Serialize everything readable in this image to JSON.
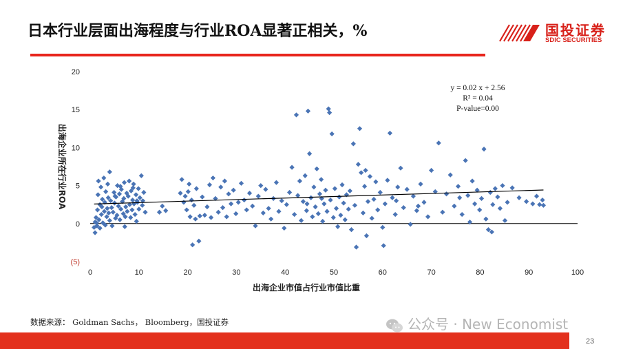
{
  "slide": {
    "title": "日本行业层面出海程度与行业ROA显著正相关，%",
    "source": "数据来源： Goldman Sachs， Bloomberg，国投证券",
    "page_number": "23",
    "accent_color": "#e8251c"
  },
  "logo": {
    "name_cn": "国投证券",
    "name_en": "SDIC SECURITIES",
    "color": "#d8211a"
  },
  "watermark": {
    "text": "公众号 · New Economist",
    "icon": "wechat-icon"
  },
  "chart_data": {
    "type": "scatter",
    "title": "",
    "xlabel": "出海企业市值占行业市值比重",
    "ylabel": "出海企业所在行业ROA",
    "xlim": [
      0,
      100
    ],
    "ylim": [
      -5,
      20
    ],
    "x_ticks": [
      "0",
      "10",
      "20",
      "30",
      "40",
      "50",
      "60",
      "70",
      "80",
      "90",
      "100"
    ],
    "y_ticks": [
      "20",
      "15",
      "10",
      "5",
      "0",
      "(5)"
    ],
    "grid": false,
    "marker": "diamond",
    "point_color": "#4a74b5",
    "negative_tick_color": "#c0392b",
    "annotation": [
      "y = 0.02 x + 2.56",
      "R² = 0.04",
      "P-value=0.00"
    ],
    "trendline": {
      "slope": 0.02,
      "intercept": 2.56,
      "x_range": [
        0.8,
        93
      ]
    },
    "points": [
      [
        0.8,
        -0.5
      ],
      [
        1,
        0.2
      ],
      [
        1,
        -1.2
      ],
      [
        1.2,
        0.8
      ],
      [
        1.4,
        -0.3
      ],
      [
        1.5,
        1.8
      ],
      [
        1.6,
        3.8
      ],
      [
        1.7,
        5.6
      ],
      [
        1.8,
        0.5
      ],
      [
        2,
        2.5
      ],
      [
        2,
        -0.6
      ],
      [
        2.2,
        4.8
      ],
      [
        2.3,
        1.2
      ],
      [
        2.5,
        3.2
      ],
      [
        2.6,
        0.1
      ],
      [
        2.8,
        6.0
      ],
      [
        2.9,
        1.6
      ],
      [
        3,
        2.8
      ],
      [
        3.1,
        -0.2
      ],
      [
        3.2,
        4.2
      ],
      [
        3.4,
        0.9
      ],
      [
        3.5,
        2.0
      ],
      [
        3.6,
        5.2
      ],
      [
        3.8,
        1.4
      ],
      [
        4,
        6.8
      ],
      [
        4,
        0.4
      ],
      [
        4.2,
        3.0
      ],
      [
        4.4,
        2.1
      ],
      [
        4.5,
        -0.3
      ],
      [
        4.7,
        1.5
      ],
      [
        4.9,
        4.1
      ],
      [
        5,
        2.7
      ],
      [
        5.2,
        0.7
      ],
      [
        5.3,
        3.5
      ],
      [
        5.5,
        1.1
      ],
      [
        5.6,
        5.0
      ],
      [
        5.8,
        2.3
      ],
      [
        6,
        3.9
      ],
      [
        6.1,
        0.5
      ],
      [
        6.3,
        1.9
      ],
      [
        6.4,
        4.5
      ],
      [
        6.6,
        2.9
      ],
      [
        6.8,
        1.3
      ],
      [
        6.9,
        3.3
      ],
      [
        7,
        5.4
      ],
      [
        7.2,
        0.9
      ],
      [
        7.3,
        2.2
      ],
      [
        7.5,
        4.0
      ],
      [
        7.6,
        1.6
      ],
      [
        7.8,
        3.6
      ],
      [
        8,
        5.6
      ],
      [
        8.1,
        2.5
      ],
      [
        8.3,
        0.8
      ],
      [
        8.4,
        4.3
      ],
      [
        8.6,
        1.8
      ],
      [
        8.7,
        3.1
      ],
      [
        8.9,
        5.2
      ],
      [
        9,
        2.6
      ],
      [
        9.2,
        1.2
      ],
      [
        9.4,
        3.8
      ],
      [
        9.5,
        0.3
      ],
      [
        9.7,
        2.8
      ],
      [
        9.9,
        4.6
      ],
      [
        10,
        1.9
      ],
      [
        10.2,
        3.4
      ],
      [
        10.5,
        6.3
      ],
      [
        10.7,
        2.4
      ],
      [
        11,
        4.1
      ],
      [
        11.3,
        1.5
      ],
      [
        7.1,
        -0.4
      ],
      [
        6.2,
        4.9
      ],
      [
        5.1,
        3.6
      ],
      [
        8.8,
        4.7
      ],
      [
        9.6,
        3.0
      ],
      [
        3.7,
        3.4
      ],
      [
        2.4,
        2.2
      ],
      [
        1.3,
        0.1
      ],
      [
        10.8,
        3.0
      ],
      [
        14.2,
        1.5
      ],
      [
        14.8,
        2.3
      ],
      [
        15.5,
        1.7
      ],
      [
        18.5,
        4.0
      ],
      [
        18.8,
        5.8
      ],
      [
        19.2,
        2.8
      ],
      [
        19.5,
        3.6
      ],
      [
        19.8,
        1.8
      ],
      [
        20.1,
        4.2
      ],
      [
        20.3,
        5.2
      ],
      [
        20.5,
        0.9
      ],
      [
        20.8,
        3.1
      ],
      [
        21,
        -2.8
      ],
      [
        21.3,
        2.4
      ],
      [
        21.6,
        0.6
      ],
      [
        21.8,
        4.6
      ],
      [
        22.3,
        -2.3
      ],
      [
        22.5,
        1.0
      ],
      [
        23,
        3.5
      ],
      [
        23.5,
        1.1
      ],
      [
        24,
        2.2
      ],
      [
        24.5,
        5.1
      ],
      [
        24.8,
        0.8
      ],
      [
        25.2,
        6.0
      ],
      [
        25.7,
        3.3
      ],
      [
        26.3,
        1.5
      ],
      [
        26.8,
        4.8
      ],
      [
        27.2,
        2.1
      ],
      [
        27.6,
        5.6
      ],
      [
        28,
        0.9
      ],
      [
        28.4,
        3.9
      ],
      [
        28.9,
        2.6
      ],
      [
        29.4,
        4.4
      ],
      [
        29.9,
        1.3
      ],
      [
        30.4,
        2.8
      ],
      [
        31,
        5.3
      ],
      [
        31.6,
        3.1
      ],
      [
        32.1,
        1.8
      ],
      [
        32.7,
        4.0
      ],
      [
        33.3,
        2.3
      ],
      [
        33.9,
        -0.3
      ],
      [
        34.5,
        3.6
      ],
      [
        35,
        5.0
      ],
      [
        35.5,
        1.4
      ],
      [
        36,
        4.5
      ],
      [
        36.6,
        2.0
      ],
      [
        37.1,
        0.6
      ],
      [
        37.6,
        3.3
      ],
      [
        38.2,
        5.4
      ],
      [
        38.7,
        1.6
      ],
      [
        39.3,
        3.0
      ],
      [
        39.8,
        -0.6
      ],
      [
        40.3,
        2.5
      ],
      [
        40.9,
        4.1
      ],
      [
        41.4,
        7.4
      ],
      [
        41.9,
        1.2
      ],
      [
        42.3,
        14.3
      ],
      [
        42.6,
        3.7
      ],
      [
        43,
        5.6
      ],
      [
        43.3,
        0.4
      ],
      [
        43.7,
        2.9
      ],
      [
        44.1,
        6.3
      ],
      [
        44.4,
        1.7
      ],
      [
        44.7,
        14.8
      ],
      [
        45,
        9.2
      ],
      [
        45.3,
        3.4
      ],
      [
        45.6,
        0.9
      ],
      [
        45.9,
        4.8
      ],
      [
        46.2,
        2.2
      ],
      [
        46.5,
        7.2
      ],
      [
        46.8,
        1.3
      ],
      [
        47.1,
        3.9
      ],
      [
        47.4,
        5.8
      ],
      [
        47.7,
        0.3
      ],
      [
        48,
        2.6
      ],
      [
        48.3,
        4.4
      ],
      [
        48.6,
        1.6
      ],
      [
        48.9,
        15.1
      ],
      [
        49.1,
        14.6
      ],
      [
        49.3,
        3.1
      ],
      [
        49.6,
        11.8
      ],
      [
        49.9,
        0.8
      ],
      [
        50.2,
        4.6
      ],
      [
        50.5,
        2.0
      ],
      [
        50.8,
        -0.4
      ],
      [
        51.1,
        3.5
      ],
      [
        51.4,
        1.1
      ],
      [
        51.7,
        5.1
      ],
      [
        52,
        2.7
      ],
      [
        52.3,
        0.5
      ],
      [
        52.6,
        3.8
      ],
      [
        53,
        1.9
      ],
      [
        53.3,
        4.3
      ],
      [
        53.6,
        -0.8
      ],
      [
        54,
        10.5
      ],
      [
        54.3,
        2.4
      ],
      [
        54.6,
        -3.1
      ],
      [
        55,
        7.8
      ],
      [
        55.3,
        12.5
      ],
      [
        55.6,
        6.7
      ],
      [
        56,
        1.4
      ],
      [
        56.3,
        4.9
      ],
      [
        56.7,
        -1.6
      ],
      [
        57,
        2.9
      ],
      [
        57.4,
        6.2
      ],
      [
        57.8,
        0.7
      ],
      [
        58.2,
        3.2
      ],
      [
        58.6,
        5.5
      ],
      [
        59,
        1.8
      ],
      [
        59.5,
        4.1
      ],
      [
        60,
        -0.5
      ],
      [
        60.5,
        2.6
      ],
      [
        61,
        5.7
      ],
      [
        61.5,
        11.9
      ],
      [
        62,
        3.4
      ],
      [
        62.6,
        1.2
      ],
      [
        63.1,
        4.8
      ],
      [
        63.7,
        7.3
      ],
      [
        64.3,
        2.1
      ],
      [
        65,
        4.5
      ],
      [
        65.7,
        -0.1
      ],
      [
        66.3,
        3.6
      ],
      [
        67,
        1.7
      ],
      [
        67.8,
        5.2
      ],
      [
        68.5,
        2.8
      ],
      [
        69.3,
        0.9
      ],
      [
        70,
        7.0
      ],
      [
        70.8,
        4.2
      ],
      [
        71.5,
        10.6
      ],
      [
        72.3,
        1.5
      ],
      [
        73.1,
        3.9
      ],
      [
        73.9,
        6.4
      ],
      [
        74.7,
        2.3
      ],
      [
        75.5,
        4.9
      ],
      [
        76.3,
        1.2
      ],
      [
        77,
        8.3
      ],
      [
        77.5,
        3.7
      ],
      [
        77.9,
        0.2
      ],
      [
        78.4,
        5.6
      ],
      [
        78.9,
        2.6
      ],
      [
        79.4,
        4.4
      ],
      [
        79.9,
        1.8
      ],
      [
        80.3,
        3.3
      ],
      [
        80.8,
        9.8
      ],
      [
        81.2,
        0.6
      ],
      [
        81.7,
        -0.8
      ],
      [
        82.1,
        4.1
      ],
      [
        82.6,
        2.5
      ],
      [
        83.1,
        4.6
      ],
      [
        83.6,
        3.5
      ],
      [
        84.1,
        2.0
      ],
      [
        84.6,
        5.0
      ],
      [
        85.1,
        0.4
      ],
      [
        85.6,
        2.8
      ],
      [
        86.6,
        4.7
      ],
      [
        88,
        3.4
      ],
      [
        89.5,
        2.9
      ],
      [
        90.8,
        2.6
      ],
      [
        91.6,
        3.6
      ],
      [
        92.2,
        2.5
      ],
      [
        92.8,
        3.1
      ],
      [
        93,
        2.4
      ],
      [
        82.4,
        -1.1
      ],
      [
        60.2,
        -2.9
      ],
      [
        44.5,
        2.6
      ],
      [
        47.5,
        3.3
      ],
      [
        56.5,
        7.0
      ],
      [
        62.8,
        3.0
      ],
      [
        75.8,
        3.4
      ],
      [
        67.3,
        2.3
      ]
    ]
  }
}
